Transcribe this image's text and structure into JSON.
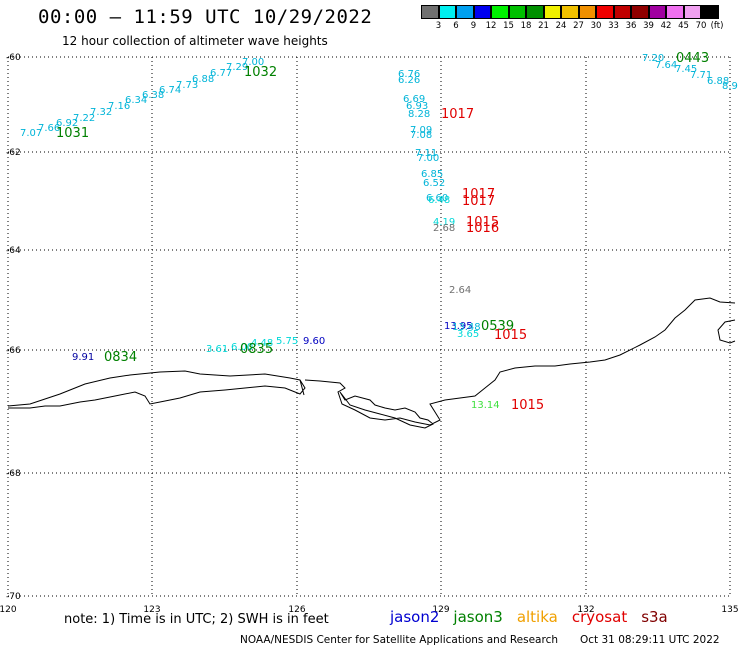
{
  "title": "00:00 – 11:59 UTC 10/29/2022",
  "subtitle": "12 hour collection of altimeter wave heights",
  "scale": {
    "colors": [
      "#707070",
      "#00f0f0",
      "#00a0f0",
      "#0000f0",
      "#00f000",
      "#00c000",
      "#009000",
      "#f0f000",
      "#f0c000",
      "#f09000",
      "#f00000",
      "#c00000",
      "#900000",
      "#a000a0",
      "#f070f0",
      "#f0a0f0",
      "#000000"
    ],
    "labels": [
      "3",
      "6",
      "9",
      "12",
      "15",
      "18",
      "21",
      "24",
      "27",
      "30",
      "33",
      "36",
      "39",
      "42",
      "45",
      "70"
    ],
    "unit": "(ft)"
  },
  "axes": {
    "x_ticks": [
      "120",
      "123",
      "126",
      "129",
      "132",
      "135"
    ],
    "y_ticks": [
      "-60",
      "-62",
      "-64",
      "-66",
      "-68",
      "-70"
    ]
  },
  "observations": [
    {
      "v": "7.07",
      "c": "#00b4d8"
    },
    {
      "v": "7.66",
      "c": "#00b4d8"
    },
    {
      "v": "6.92",
      "c": "#00b4d8"
    },
    {
      "v": "7.22",
      "c": "#00b4d8"
    },
    {
      "v": "7.32",
      "c": "#00b4d8"
    },
    {
      "v": "7.16",
      "c": "#00b4d8"
    },
    {
      "v": "6.34",
      "c": "#00b4d8"
    },
    {
      "v": "6.38",
      "c": "#00b4d8"
    },
    {
      "v": "6.74",
      "c": "#00b4d8"
    },
    {
      "v": "7.73",
      "c": "#00b4d8"
    },
    {
      "v": "6.88",
      "c": "#00b4d8"
    },
    {
      "v": "6.77",
      "c": "#00b4d8"
    },
    {
      "v": "7.29",
      "c": "#00b4d8"
    },
    {
      "v": "7.00",
      "c": "#00b4d8"
    },
    {
      "v": "6.76",
      "c": "#00b4d8"
    },
    {
      "v": "6.26",
      "c": "#00b4d8"
    },
    {
      "v": "6.69",
      "c": "#00b4d8"
    },
    {
      "v": "6.93",
      "c": "#00b4d8"
    },
    {
      "v": "8.28",
      "c": "#00b4d8"
    },
    {
      "v": "7.09",
      "c": "#00b4d8"
    },
    {
      "v": "7.08",
      "c": "#00b4d8"
    },
    {
      "v": "7.11",
      "c": "#00b4d8"
    },
    {
      "v": "7.00",
      "c": "#00b4d8"
    },
    {
      "v": "6.85",
      "c": "#00b4d8"
    },
    {
      "v": "6.52",
      "c": "#00b4d8"
    },
    {
      "v": "6.60",
      "c": "#00b4d8"
    },
    {
      "v": "6.48",
      "c": "#00d8d8"
    },
    {
      "v": "4.19",
      "c": "#00d8d8"
    },
    {
      "v": "2.68",
      "c": "#707070"
    },
    {
      "v": "2.64",
      "c": "#707070"
    },
    {
      "v": "13.95",
      "c": "#0000c0"
    },
    {
      "v": "13.48",
      "c": "#00b4d8"
    },
    {
      "v": "3.65",
      "c": "#00d8d8"
    },
    {
      "v": "13.14",
      "c": "#40e040"
    },
    {
      "v": "9.91",
      "c": "#0000a0"
    },
    {
      "v": "3.61",
      "c": "#00d8d8"
    },
    {
      "v": "6.00",
      "c": "#00d8d8"
    },
    {
      "v": "4.48",
      "c": "#00d8d8"
    },
    {
      "v": "5.75",
      "c": "#00d8d8"
    },
    {
      "v": "9.60",
      "c": "#0000c0"
    },
    {
      "v": "7.20",
      "c": "#00b4d8"
    },
    {
      "v": "7.64",
      "c": "#00b4d8"
    },
    {
      "v": "7.45",
      "c": "#00b4d8"
    },
    {
      "v": "7.71",
      "c": "#00b4d8"
    },
    {
      "v": "6.88",
      "c": "#00b4d8"
    },
    {
      "v": "8.9",
      "c": "#00b4d8"
    }
  ],
  "buoys": [
    {
      "v": "1031",
      "c": "#008000"
    },
    {
      "v": "1032",
      "c": "#008000"
    },
    {
      "v": "0443",
      "c": "#008000"
    },
    {
      "v": "1017",
      "c": "#e00000"
    },
    {
      "v": "1017",
      "c": "#e00000"
    },
    {
      "v": "1017",
      "c": "#e00000"
    },
    {
      "v": "1015",
      "c": "#e00000"
    },
    {
      "v": "1016",
      "c": "#e00000"
    },
    {
      "v": "0539",
      "c": "#008000"
    },
    {
      "v": "1015",
      "c": "#e00000"
    },
    {
      "v": "1015",
      "c": "#e00000"
    },
    {
      "v": "0834",
      "c": "#008000"
    },
    {
      "v": "0835",
      "c": "#008000"
    }
  ],
  "note": "note:  1) Time is in UTC;  2) SWH is in feet",
  "satellites": [
    {
      "name": "jason2",
      "color": "#0000d0"
    },
    {
      "name": "jason3",
      "color": "#008000"
    },
    {
      "name": "altika",
      "color": "#f0a000"
    },
    {
      "name": "cryosat",
      "color": "#e00000"
    },
    {
      "name": "s3a",
      "color": "#800000"
    }
  ],
  "credit": "NOAA/NESDIS Center for Satellite Applications and Research",
  "timestamp": "Oct 31 08:29:11 UTC 2022"
}
